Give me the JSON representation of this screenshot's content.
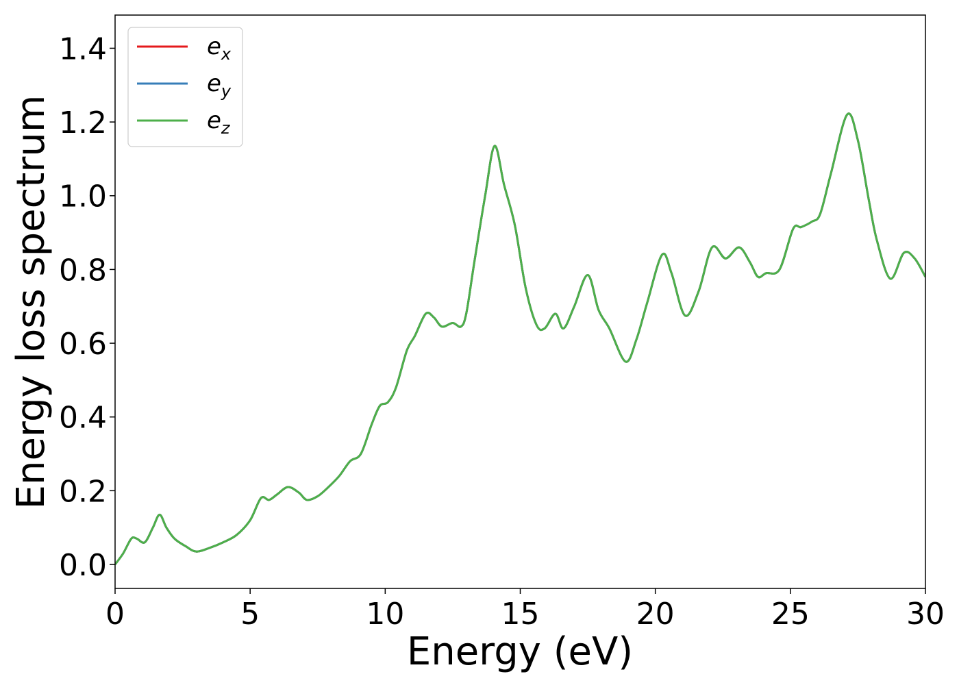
{
  "chart_data": {
    "type": "line",
    "title": "",
    "xlabel": "Energy (eV)",
    "ylabel": "Energy loss spectrum",
    "xlim": [
      0,
      30
    ],
    "ylim": [
      -0.065,
      1.49
    ],
    "xticks": [
      0,
      5,
      10,
      15,
      20,
      25,
      30
    ],
    "xtick_labels": [
      "0",
      "5",
      "10",
      "15",
      "20",
      "25",
      "30"
    ],
    "yticks": [
      0.0,
      0.2,
      0.4,
      0.6,
      0.8,
      1.0,
      1.2,
      1.4
    ],
    "ytick_labels": [
      "0.0",
      "0.2",
      "0.4",
      "0.6",
      "0.8",
      "1.0",
      "1.2",
      "1.4"
    ],
    "grid": false,
    "legend_position": "top-left",
    "series": [
      {
        "name": "e_x",
        "label_base": "e",
        "label_sub": "x",
        "color": "#e41a1c",
        "x": [
          0,
          0.3,
          0.6,
          0.8,
          1.1,
          1.4,
          1.65,
          1.9,
          2.2,
          2.6,
          3.0,
          3.5,
          4.0,
          4.5,
          5.0,
          5.4,
          5.7,
          6.0,
          6.4,
          6.8,
          7.1,
          7.5,
          7.9,
          8.3,
          8.7,
          9.1,
          9.5,
          9.8,
          10.1,
          10.4,
          10.8,
          11.1,
          11.5,
          11.8,
          12.1,
          12.5,
          12.8,
          13.0,
          13.3,
          13.7,
          14.05,
          14.4,
          14.8,
          15.2,
          15.6,
          15.9,
          16.3,
          16.6,
          17.0,
          17.5,
          17.9,
          18.3,
          18.9,
          19.3,
          19.7,
          20.25,
          20.6,
          21.1,
          21.6,
          22.1,
          22.6,
          23.1,
          23.5,
          23.8,
          24.1,
          24.6,
          25.1,
          25.4,
          25.8,
          26.1,
          26.5,
          27.1,
          27.5,
          27.9,
          28.2,
          28.7,
          29.2,
          29.6,
          30.0
        ],
        "y": [
          0.0,
          0.03,
          0.07,
          0.07,
          0.06,
          0.1,
          0.135,
          0.1,
          0.07,
          0.05,
          0.035,
          0.045,
          0.06,
          0.08,
          0.12,
          0.18,
          0.175,
          0.19,
          0.21,
          0.195,
          0.175,
          0.185,
          0.21,
          0.24,
          0.28,
          0.3,
          0.38,
          0.43,
          0.44,
          0.48,
          0.58,
          0.62,
          0.68,
          0.67,
          0.645,
          0.655,
          0.645,
          0.68,
          0.82,
          1.0,
          1.135,
          1.03,
          0.92,
          0.75,
          0.65,
          0.64,
          0.68,
          0.64,
          0.7,
          0.785,
          0.69,
          0.64,
          0.55,
          0.61,
          0.71,
          0.84,
          0.79,
          0.675,
          0.74,
          0.86,
          0.83,
          0.86,
          0.82,
          0.78,
          0.79,
          0.8,
          0.91,
          0.915,
          0.93,
          0.95,
          1.06,
          1.22,
          1.15,
          0.99,
          0.88,
          0.775,
          0.845,
          0.83,
          0.78
        ]
      },
      {
        "name": "e_y",
        "label_base": "e",
        "label_sub": "y",
        "color": "#377eb8",
        "x": [
          0,
          0.3,
          0.6,
          0.8,
          1.1,
          1.4,
          1.65,
          1.9,
          2.2,
          2.6,
          3.0,
          3.5,
          4.0,
          4.5,
          5.0,
          5.4,
          5.7,
          6.0,
          6.4,
          6.8,
          7.1,
          7.5,
          7.9,
          8.3,
          8.7,
          9.1,
          9.5,
          9.8,
          10.1,
          10.4,
          10.8,
          11.1,
          11.5,
          11.8,
          12.1,
          12.5,
          12.8,
          13.0,
          13.3,
          13.7,
          14.05,
          14.4,
          14.8,
          15.2,
          15.6,
          15.9,
          16.3,
          16.6,
          17.0,
          17.5,
          17.9,
          18.3,
          18.9,
          19.3,
          19.7,
          20.25,
          20.6,
          21.1,
          21.6,
          22.1,
          22.6,
          23.1,
          23.5,
          23.8,
          24.1,
          24.6,
          25.1,
          25.4,
          25.8,
          26.1,
          26.5,
          27.1,
          27.5,
          27.9,
          28.2,
          28.7,
          29.2,
          29.6,
          30.0
        ],
        "y": [
          0.0,
          0.03,
          0.07,
          0.07,
          0.06,
          0.1,
          0.135,
          0.1,
          0.07,
          0.05,
          0.035,
          0.045,
          0.06,
          0.08,
          0.12,
          0.18,
          0.175,
          0.19,
          0.21,
          0.195,
          0.175,
          0.185,
          0.21,
          0.24,
          0.28,
          0.3,
          0.38,
          0.43,
          0.44,
          0.48,
          0.58,
          0.62,
          0.68,
          0.67,
          0.645,
          0.655,
          0.645,
          0.68,
          0.82,
          1.0,
          1.135,
          1.03,
          0.92,
          0.75,
          0.65,
          0.64,
          0.68,
          0.64,
          0.7,
          0.785,
          0.69,
          0.64,
          0.55,
          0.61,
          0.71,
          0.84,
          0.79,
          0.675,
          0.74,
          0.86,
          0.83,
          0.86,
          0.82,
          0.78,
          0.79,
          0.8,
          0.91,
          0.915,
          0.93,
          0.95,
          1.06,
          1.22,
          1.15,
          0.99,
          0.88,
          0.775,
          0.845,
          0.83,
          0.78
        ]
      },
      {
        "name": "e_z",
        "label_base": "e",
        "label_sub": "z",
        "color": "#4daf4a",
        "x": [
          0,
          0.3,
          0.6,
          0.8,
          1.1,
          1.4,
          1.65,
          1.9,
          2.2,
          2.6,
          3.0,
          3.5,
          4.0,
          4.5,
          5.0,
          5.4,
          5.7,
          6.0,
          6.4,
          6.8,
          7.1,
          7.5,
          7.9,
          8.3,
          8.7,
          9.1,
          9.5,
          9.8,
          10.1,
          10.4,
          10.8,
          11.1,
          11.5,
          11.8,
          12.1,
          12.5,
          12.8,
          13.0,
          13.3,
          13.7,
          14.05,
          14.4,
          14.8,
          15.2,
          15.6,
          15.9,
          16.3,
          16.6,
          17.0,
          17.5,
          17.9,
          18.3,
          18.9,
          19.3,
          19.7,
          20.25,
          20.6,
          21.1,
          21.6,
          22.1,
          22.6,
          23.1,
          23.5,
          23.8,
          24.1,
          24.6,
          25.1,
          25.4,
          25.8,
          26.1,
          26.5,
          27.1,
          27.5,
          27.9,
          28.2,
          28.7,
          29.2,
          29.6,
          30.0
        ],
        "y": [
          0.0,
          0.03,
          0.07,
          0.07,
          0.06,
          0.1,
          0.135,
          0.1,
          0.07,
          0.05,
          0.035,
          0.045,
          0.06,
          0.08,
          0.12,
          0.18,
          0.175,
          0.19,
          0.21,
          0.195,
          0.175,
          0.185,
          0.21,
          0.24,
          0.28,
          0.3,
          0.38,
          0.43,
          0.44,
          0.48,
          0.58,
          0.62,
          0.68,
          0.67,
          0.645,
          0.655,
          0.645,
          0.68,
          0.82,
          1.0,
          1.135,
          1.03,
          0.92,
          0.75,
          0.65,
          0.64,
          0.68,
          0.64,
          0.7,
          0.785,
          0.69,
          0.64,
          0.55,
          0.61,
          0.71,
          0.84,
          0.79,
          0.675,
          0.74,
          0.86,
          0.83,
          0.86,
          0.82,
          0.78,
          0.79,
          0.8,
          0.91,
          0.915,
          0.93,
          0.95,
          1.06,
          1.22,
          1.15,
          0.99,
          0.88,
          0.775,
          0.845,
          0.83,
          0.78
        ]
      }
    ]
  }
}
